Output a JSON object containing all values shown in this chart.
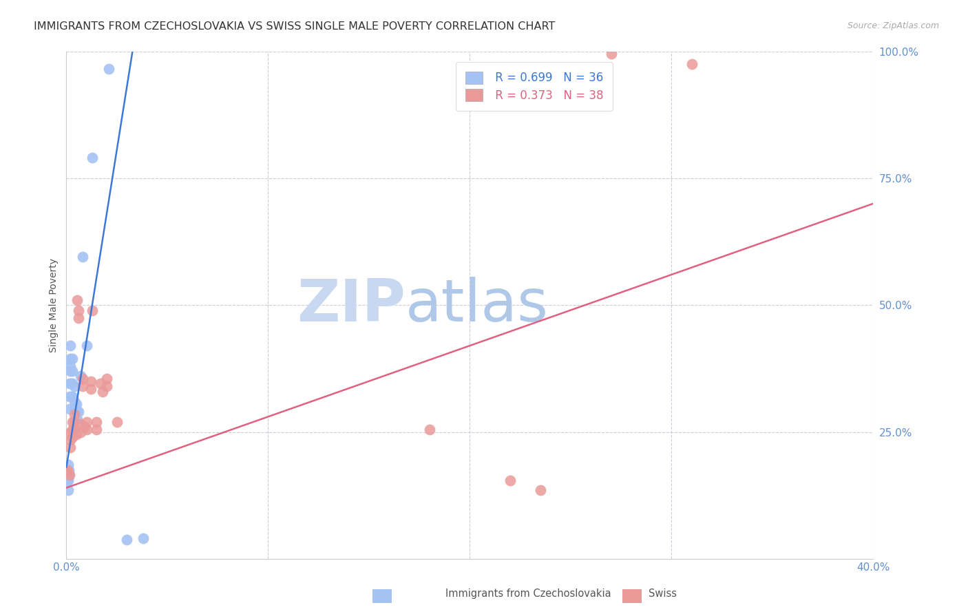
{
  "title": "IMMIGRANTS FROM CZECHOSLOVAKIA VS SWISS SINGLE MALE POVERTY CORRELATION CHART",
  "source": "Source: ZipAtlas.com",
  "ylabel": "Single Male Poverty",
  "xlim": [
    0.0,
    0.4
  ],
  "ylim": [
    0.0,
    1.0
  ],
  "yticks": [
    0.0,
    0.25,
    0.5,
    0.75,
    1.0
  ],
  "ytick_labels": [
    "",
    "25.0%",
    "50.0%",
    "75.0%",
    "100.0%"
  ],
  "xticks": [
    0.0,
    0.1,
    0.2,
    0.3,
    0.4
  ],
  "xtick_labels": [
    "0.0%",
    "",
    "",
    "",
    "40.0%"
  ],
  "legend_blue_r": "R = 0.699",
  "legend_blue_n": "N = 36",
  "legend_pink_r": "R = 0.373",
  "legend_pink_n": "N = 38",
  "blue_color": "#a4c2f4",
  "pink_color": "#ea9999",
  "blue_line_color": "#3c78d8",
  "pink_line_color": "#e06080",
  "watermark_zip": "ZIP",
  "watermark_atlas": "atlas",
  "watermark_zip_color": "#c8d8f0",
  "watermark_atlas_color": "#b0c8e8",
  "background_color": "#ffffff",
  "grid_color": "#ccccdd",
  "tick_color": "#6090d0",
  "title_fontsize": 11.5,
  "axis_label_fontsize": 10,
  "tick_fontsize": 11,
  "blue_scatter": [
    [
      0.0005,
      0.175
    ],
    [
      0.0007,
      0.155
    ],
    [
      0.0008,
      0.135
    ],
    [
      0.001,
      0.185
    ],
    [
      0.001,
      0.17
    ],
    [
      0.001,
      0.16
    ],
    [
      0.001,
      0.155
    ],
    [
      0.0012,
      0.175
    ],
    [
      0.0013,
      0.168
    ],
    [
      0.0015,
      0.345
    ],
    [
      0.0015,
      0.32
    ],
    [
      0.0015,
      0.295
    ],
    [
      0.0018,
      0.38
    ],
    [
      0.002,
      0.42
    ],
    [
      0.002,
      0.395
    ],
    [
      0.002,
      0.37
    ],
    [
      0.0022,
      0.345
    ],
    [
      0.0025,
      0.32
    ],
    [
      0.003,
      0.395
    ],
    [
      0.003,
      0.37
    ],
    [
      0.003,
      0.345
    ],
    [
      0.003,
      0.32
    ],
    [
      0.004,
      0.34
    ],
    [
      0.004,
      0.31
    ],
    [
      0.004,
      0.295
    ],
    [
      0.005,
      0.305
    ],
    [
      0.005,
      0.29
    ],
    [
      0.0055,
      0.275
    ],
    [
      0.006,
      0.29
    ],
    [
      0.007,
      0.36
    ],
    [
      0.008,
      0.595
    ],
    [
      0.01,
      0.42
    ],
    [
      0.013,
      0.79
    ],
    [
      0.021,
      0.965
    ],
    [
      0.03,
      0.038
    ],
    [
      0.038,
      0.04
    ]
  ],
  "pink_scatter": [
    [
      0.0005,
      0.175
    ],
    [
      0.001,
      0.17
    ],
    [
      0.0015,
      0.165
    ],
    [
      0.002,
      0.25
    ],
    [
      0.002,
      0.235
    ],
    [
      0.002,
      0.22
    ],
    [
      0.003,
      0.27
    ],
    [
      0.003,
      0.255
    ],
    [
      0.003,
      0.24
    ],
    [
      0.004,
      0.285
    ],
    [
      0.004,
      0.27
    ],
    [
      0.004,
      0.255
    ],
    [
      0.005,
      0.245
    ],
    [
      0.0055,
      0.51
    ],
    [
      0.006,
      0.49
    ],
    [
      0.006,
      0.475
    ],
    [
      0.007,
      0.265
    ],
    [
      0.007,
      0.25
    ],
    [
      0.008,
      0.355
    ],
    [
      0.008,
      0.34
    ],
    [
      0.009,
      0.26
    ],
    [
      0.01,
      0.27
    ],
    [
      0.01,
      0.255
    ],
    [
      0.012,
      0.35
    ],
    [
      0.012,
      0.335
    ],
    [
      0.013,
      0.49
    ],
    [
      0.015,
      0.27
    ],
    [
      0.015,
      0.255
    ],
    [
      0.017,
      0.345
    ],
    [
      0.018,
      0.33
    ],
    [
      0.02,
      0.355
    ],
    [
      0.02,
      0.34
    ],
    [
      0.025,
      0.27
    ],
    [
      0.18,
      0.255
    ],
    [
      0.22,
      0.155
    ],
    [
      0.235,
      0.135
    ],
    [
      0.27,
      0.995
    ],
    [
      0.31,
      0.975
    ]
  ],
  "blue_line_x": [
    0.0,
    0.038
  ],
  "blue_line_params": [
    25.0,
    0.18
  ],
  "pink_line_x": [
    0.0,
    0.4
  ],
  "pink_line_params": [
    1.4,
    0.14
  ]
}
